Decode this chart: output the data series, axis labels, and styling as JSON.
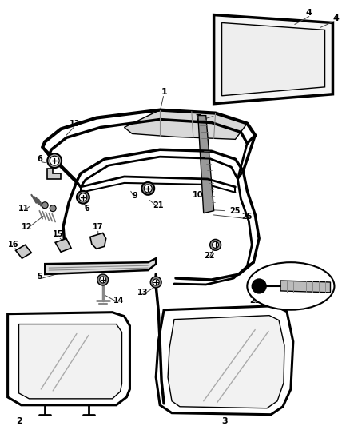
{
  "bg_color": "#ffffff",
  "line_color": "#000000",
  "fig_width": 4.38,
  "fig_height": 5.33,
  "dpi": 100
}
